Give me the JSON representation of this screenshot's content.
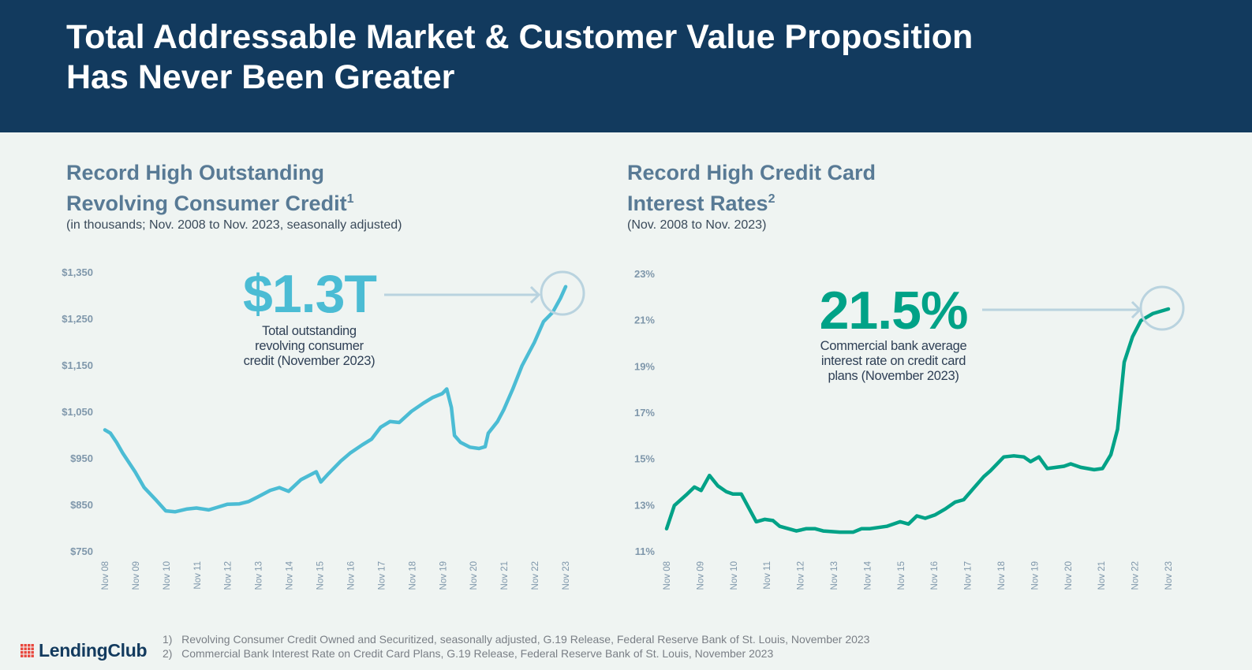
{
  "header": {
    "title_line1": "Total Addressable Market & Customer Value Proposition",
    "title_line2": "Has Never Been Greater"
  },
  "colors": {
    "header_bg": "#123a5e",
    "credit_line": "#4bbcd4",
    "rate_line": "#00a287",
    "callout": "#b9d3df",
    "logo_red": "#e8463c"
  },
  "chart_data": [
    {
      "type": "line",
      "title_line1": "Record High Outstanding",
      "title_line2": "Revolving Consumer Credit",
      "title_sup": "1",
      "subtitle": "(in thousands; Nov. 2008 to Nov. 2023, seasonally adjusted)",
      "ylim": [
        750,
        1350
      ],
      "yticks": [
        "$1,350",
        "$1,250",
        "$1,150",
        "$1,050",
        "$950",
        "$850",
        "$750"
      ],
      "ytick_values": [
        1350,
        1250,
        1150,
        1050,
        950,
        850,
        750
      ],
      "xticks": [
        "Nov 08",
        "Nov 09",
        "Nov 10",
        "Nov 11",
        "Nov 12",
        "Nov 13",
        "Nov 14",
        "Nov 15",
        "Nov 16",
        "Nov 17",
        "Nov 18",
        "Nov 19",
        "Nov 20",
        "Nov 21",
        "Nov 22",
        "Nov 23"
      ],
      "xlim": [
        2008.92,
        2023.92
      ],
      "x": [
        2008.92,
        2009.1,
        2009.3,
        2009.5,
        2009.9,
        2010.2,
        2010.6,
        2010.9,
        2011.2,
        2011.6,
        2011.9,
        2012.3,
        2012.6,
        2012.9,
        2013.3,
        2013.6,
        2013.9,
        2014.3,
        2014.6,
        2014.9,
        2015.3,
        2015.8,
        2015.95,
        2016.2,
        2016.6,
        2016.9,
        2017.3,
        2017.6,
        2017.9,
        2018.2,
        2018.5,
        2018.9,
        2019.3,
        2019.6,
        2019.9,
        2020.05,
        2020.2,
        2020.3,
        2020.5,
        2020.8,
        2021.1,
        2021.3,
        2021.4,
        2021.7,
        2021.9,
        2022.2,
        2022.5,
        2022.9,
        2023.2,
        2023.5,
        2023.75,
        2023.92
      ],
      "values": [
        1012,
        1005,
        985,
        962,
        922,
        888,
        860,
        838,
        836,
        842,
        844,
        840,
        846,
        852,
        853,
        858,
        868,
        882,
        888,
        880,
        905,
        922,
        900,
        918,
        945,
        962,
        980,
        992,
        1018,
        1030,
        1028,
        1052,
        1070,
        1082,
        1090,
        1100,
        1060,
        1000,
        985,
        975,
        972,
        976,
        1005,
        1030,
        1055,
        1100,
        1150,
        1200,
        1245,
        1265,
        1295,
        1320
      ],
      "callout_value": "$1.3T",
      "callout_text": [
        "Total outstanding",
        "revolving consumer",
        "credit (November 2023)"
      ]
    },
    {
      "type": "line",
      "title_line1": "Record High Credit Card",
      "title_line2": "Interest Rates",
      "title_sup": "2",
      "subtitle": "(Nov. 2008 to Nov. 2023)",
      "ylim": [
        11,
        23
      ],
      "yticks": [
        "23%",
        "21%",
        "19%",
        "17%",
        "15%",
        "13%",
        "11%"
      ],
      "ytick_values": [
        23,
        21,
        19,
        17,
        15,
        13,
        11
      ],
      "xticks": [
        "Nov 08",
        "Nov 09",
        "Nov 10",
        "Nov 11",
        "Nov 12",
        "Nov 13",
        "Nov 14",
        "Nov 15",
        "Nov 16",
        "Nov 17",
        "Nov 18",
        "Nov 19",
        "Nov 20",
        "Nov 21",
        "Nov 22",
        "Nov 23"
      ],
      "xlim": [
        2008.92,
        2023.92
      ],
      "x": [
        2008.92,
        2009.15,
        2009.5,
        2009.75,
        2009.95,
        2010.2,
        2010.45,
        2010.7,
        2010.9,
        2011.15,
        2011.6,
        2011.85,
        2012.1,
        2012.3,
        2012.8,
        2013.1,
        2013.35,
        2013.6,
        2014.1,
        2014.5,
        2014.75,
        2015.0,
        2015.5,
        2015.9,
        2016.15,
        2016.4,
        2016.65,
        2016.95,
        2017.25,
        2017.55,
        2017.8,
        2018.1,
        2018.4,
        2018.6,
        2019.0,
        2019.3,
        2019.6,
        2019.8,
        2020.05,
        2020.3,
        2020.8,
        2021.0,
        2021.3,
        2021.7,
        2021.95,
        2022.2,
        2022.4,
        2022.6,
        2022.85,
        2023.1,
        2023.45,
        2023.92
      ],
      "values": [
        12.0,
        13.0,
        13.45,
        13.8,
        13.65,
        14.3,
        13.85,
        13.6,
        13.5,
        13.5,
        12.3,
        12.4,
        12.35,
        12.1,
        11.9,
        12.0,
        12.0,
        11.9,
        11.85,
        11.85,
        12.0,
        12.0,
        12.1,
        12.3,
        12.2,
        12.55,
        12.45,
        12.6,
        12.85,
        13.15,
        13.25,
        13.75,
        14.25,
        14.5,
        15.1,
        15.15,
        15.1,
        14.9,
        15.1,
        14.6,
        14.7,
        14.8,
        14.65,
        14.55,
        14.6,
        15.2,
        16.3,
        19.2,
        20.3,
        21.0,
        21.3,
        21.5
      ],
      "callout_value": "21.5%",
      "callout_text": [
        "Commercial bank average",
        "interest rate on credit card",
        "plans (November 2023)"
      ]
    }
  ],
  "footnotes": [
    "1)   Revolving Consumer Credit Owned and Securitized, seasonally adjusted, G.19 Release, Federal Reserve Bank of St. Louis, November 2023",
    "2)   Commercial Bank Interest Rate on Credit Card Plans, G.19 Release, Federal Reserve Bank of St. Louis, November 2023"
  ],
  "logo": {
    "text": "LendingClub"
  }
}
